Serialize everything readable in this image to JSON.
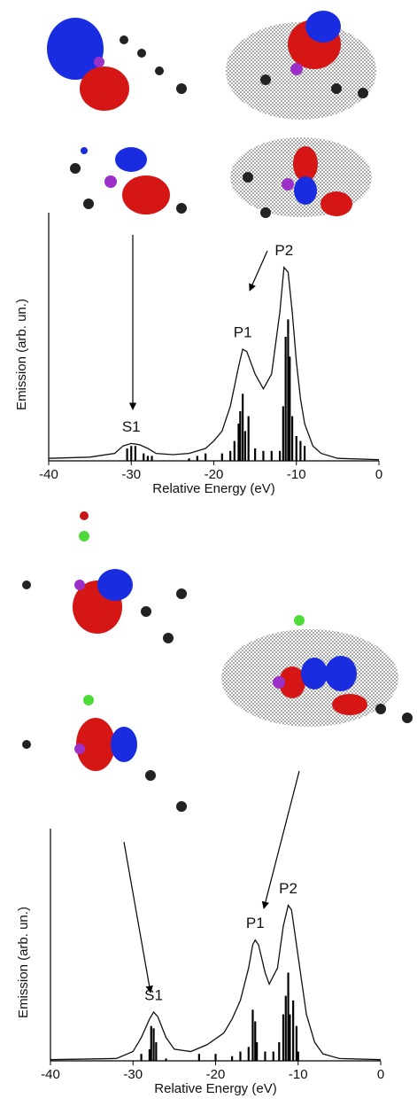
{
  "chart_data": [
    {
      "type": "line",
      "x_label": "Relative Energy (eV)",
      "y_label": "Emission (arb. un.)",
      "xlim": [
        -40,
        0
      ],
      "xticks": [
        -40,
        -30,
        -20,
        -10,
        0
      ],
      "ylim": [
        0,
        100
      ],
      "x": [
        -40,
        -35,
        -32,
        -31,
        -30,
        -29,
        -28,
        -27,
        -25,
        -23,
        -21,
        -20,
        -19,
        -18,
        -17,
        -16.5,
        -16,
        -15,
        -14,
        -13,
        -12,
        -11.5,
        -11,
        -10.5,
        -10,
        -9.5,
        -9,
        -8,
        -7,
        -5,
        0
      ],
      "series": [
        {
          "color": "#111111",
          "values": [
            1,
            1.5,
            3,
            6,
            7,
            6.5,
            5,
            3,
            2.5,
            3,
            5,
            8,
            12,
            22,
            38,
            45,
            44,
            35,
            29,
            35,
            60,
            78,
            76,
            60,
            40,
            25,
            15,
            6,
            3,
            1,
            0.5
          ]
        }
      ],
      "sticks": {
        "color": "#000000",
        "x": [
          -30.5,
          -30,
          -29.5,
          -28.5,
          -28,
          -27.5,
          -23,
          -22,
          -21,
          -19,
          -18,
          -17.5,
          -17,
          -16.8,
          -16.5,
          -16.2,
          -15.8,
          -15,
          -14,
          -13,
          -12,
          -11.6,
          -11.3,
          -11,
          -10.8,
          -10.5,
          -10,
          -9.5,
          -9
        ],
        "values": [
          5,
          6,
          6,
          3,
          2,
          2,
          1,
          2,
          3,
          3,
          4,
          8,
          15,
          20,
          27,
          12,
          18,
          5,
          4,
          4,
          4,
          22,
          50,
          57,
          42,
          18,
          10,
          8,
          6
        ]
      },
      "annotations": [
        {
          "text": "S1",
          "x": -30
        },
        {
          "text": "P1",
          "x": -16.5
        },
        {
          "text": "P2",
          "x": -11.5
        }
      ]
    },
    {
      "type": "line",
      "x_label": "Relative Energy (eV)",
      "y_label": "Emission (arb. un.)",
      "xlim": [
        -40,
        0
      ],
      "xticks": [
        -40,
        -30,
        -20,
        -10,
        0
      ],
      "ylim": [
        0,
        100
      ],
      "x": [
        -40,
        -32,
        -30,
        -29,
        -28,
        -27.5,
        -27,
        -26,
        -25,
        -23,
        -21,
        -19,
        -18,
        -17,
        -16,
        -15.5,
        -15.2,
        -14.8,
        -14,
        -13.5,
        -12.5,
        -11.8,
        -11.2,
        -10.8,
        -10,
        -9,
        -8,
        -7,
        -5,
        0
      ],
      "series": [
        {
          "color": "#111111",
          "values": [
            0.5,
            1,
            4,
            10,
            18,
            21,
            19,
            10,
            5,
            4,
            7,
            12,
            18,
            26,
            40,
            50,
            52,
            50,
            38,
            33,
            40,
            58,
            67,
            65,
            45,
            20,
            8,
            3,
            1,
            0.5
          ]
        }
      ],
      "sticks": {
        "color": "#000000",
        "x": [
          -29,
          -28,
          -27.8,
          -27.5,
          -27.2,
          -26,
          -22,
          -20,
          -18,
          -17,
          -16,
          -15.5,
          -15.2,
          -15,
          -14,
          -13,
          -12.3,
          -11.8,
          -11.5,
          -11.2,
          -11,
          -10.6,
          -10.2,
          -10
        ],
        "values": [
          3,
          5,
          15,
          14,
          8,
          1,
          3,
          3,
          2,
          4,
          6,
          22,
          17,
          8,
          4,
          4,
          8,
          20,
          28,
          38,
          20,
          26,
          15,
          4
        ]
      },
      "annotations": [
        {
          "text": "S1",
          "x": -27.5
        },
        {
          "text": "P1",
          "x": -15.2
        },
        {
          "text": "P2",
          "x": -11.2
        }
      ]
    }
  ]
}
